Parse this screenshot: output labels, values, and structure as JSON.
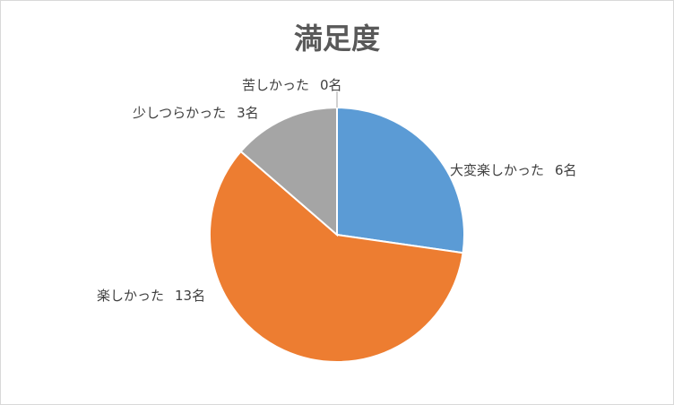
{
  "chart_data": {
    "type": "pie",
    "title": "満足度",
    "categories": [
      "大変楽しかった",
      "楽しかった",
      "少しつらかった",
      "苦しかった"
    ],
    "values": [
      6,
      13,
      3,
      0
    ],
    "value_labels": [
      "6名",
      "13名",
      "3名",
      "0名"
    ],
    "colors": [
      "#5b9bd5",
      "#ed7d31",
      "#a5a5a5",
      "#ffc000"
    ]
  }
}
